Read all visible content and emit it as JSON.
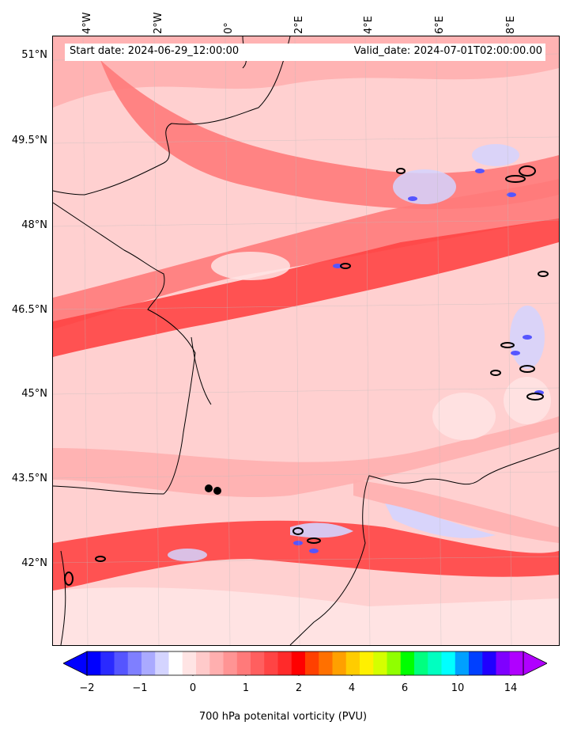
{
  "header": {
    "start_date": "Start date: 2024-06-29_12:00:00",
    "valid_date": "Valid_date: 2024-07-01T02:00:00.00"
  },
  "axes": {
    "lon_labels": [
      "4°W",
      "2°W",
      "0°",
      "2°E",
      "4°E",
      "6°E",
      "8°E"
    ],
    "lat_labels": [
      "51°N",
      "49.5°N",
      "48°N",
      "46.5°N",
      "45°N",
      "43.5°N",
      "42°N"
    ]
  },
  "colorbar": {
    "label": "700 hPa potenital vorticity (PVU)",
    "tick_labels": [
      "−2",
      "−1",
      "0",
      "1",
      "2",
      "4",
      "6",
      "10",
      "14"
    ],
    "colors": [
      "#0000ff",
      "#2a2aff",
      "#5555ff",
      "#7f7fff",
      "#aaaaff",
      "#d4d4ff",
      "#ffffff",
      "#ffe4e4",
      "#ffcaca",
      "#ffafaf",
      "#ff9494",
      "#ff7a7a",
      "#ff5f5f",
      "#ff4444",
      "#ff2a2a",
      "#ff0000",
      "#ff4000",
      "#ff7000",
      "#ffa000",
      "#ffcc00",
      "#fff000",
      "#d4ff00",
      "#90ff00",
      "#00ff00",
      "#00ff80",
      "#00ffc0",
      "#00ffff",
      "#00a0ff",
      "#0040ff",
      "#2000ff",
      "#7f00ff",
      "#b000ff"
    ],
    "extend_low_color": "#0000ff",
    "extend_high_color": "#b000ff"
  },
  "map": {
    "background_color": "#ffd0d0",
    "field_colors": {
      "light": "#ffe4e4",
      "medium": "#ffafaf",
      "strong": "#ff7a7a",
      "intense": "#ff4444",
      "negative": "#d4d4ff",
      "negative_strong": "#5555ff",
      "contour": "#000000"
    }
  }
}
